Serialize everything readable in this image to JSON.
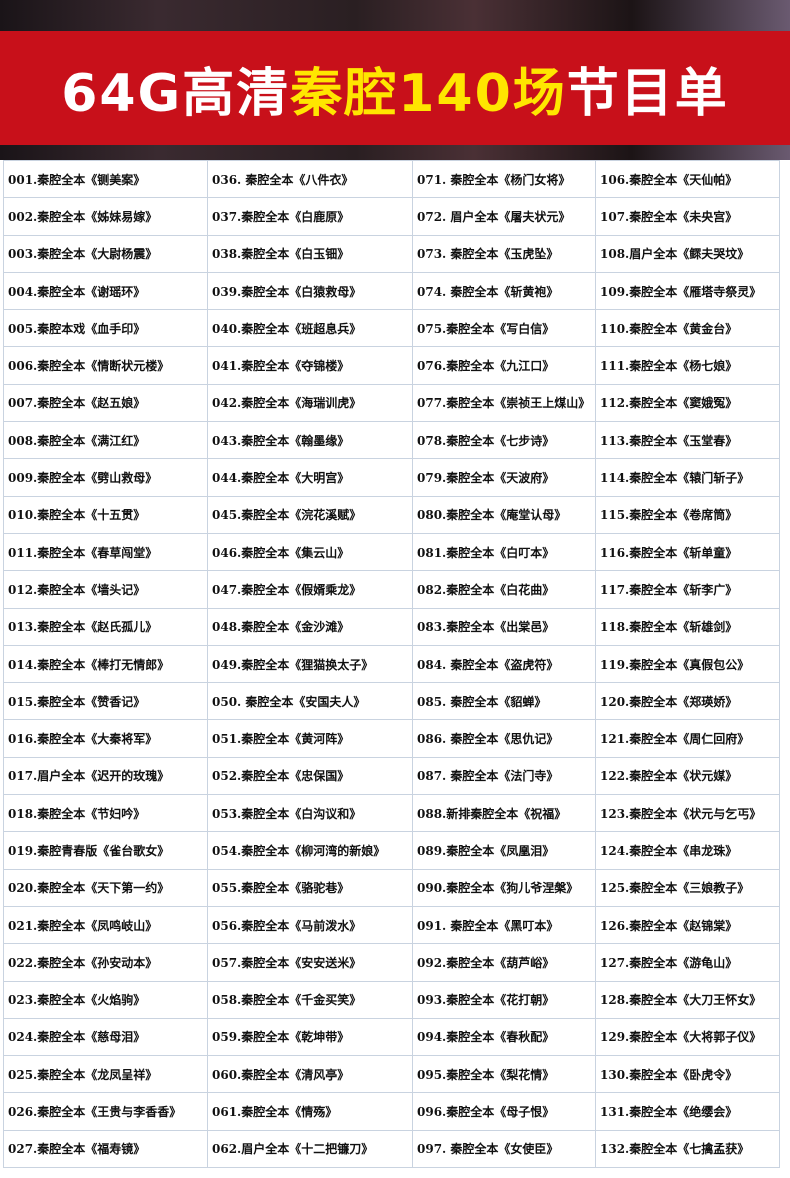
{
  "header": {
    "title_parts": [
      "64G高清",
      "秦腔140场",
      "节目单"
    ]
  },
  "table": {
    "rows": [
      [
        "001.秦腔全本《铡美案》",
        "036. 秦腔全本《八件衣》",
        "071. 秦腔全本《杨门女将》",
        "106.秦腔全本《天仙帕》"
      ],
      [
        "002.秦腔全本《姊妹易嫁》",
        "037.秦腔全本《白鹿原》",
        "072. 眉户全本《屠夫状元》",
        "107.秦腔全本《未央宫》"
      ],
      [
        "003.秦腔全本《大尉杨震》",
        "038.秦腔全本《白玉钿》",
        "073. 秦腔全本《玉虎坠》",
        "108.眉户全本《鳏夫哭坟》"
      ],
      [
        "004.秦腔全本《谢瑶环》",
        "039.秦腔全本《白猿救母》",
        "074. 秦腔全本《斩黄袍》",
        "109.秦腔全本《雁塔寺祭灵》"
      ],
      [
        "005.秦腔本戏《血手印》",
        "040.秦腔全本《班超息兵》",
        "075.秦腔全本《写白信》",
        "110.秦腔全本《黄金台》"
      ],
      [
        "006.秦腔全本《情断状元楼》",
        "041.秦腔全本《夺锦楼》",
        "076.秦腔全本《九江口》",
        "111.秦腔全本《杨七娘》"
      ],
      [
        "007.秦腔全本《赵五娘》",
        "042.秦腔全本《海瑞训虎》",
        "077.秦腔全本《崇祯王上煤山》",
        "112.秦腔全本《窦娥冤》"
      ],
      [
        "008.秦腔全本《满江红》",
        "043.秦腔全本《翰墨缘》",
        "078.秦腔全本《七步诗》",
        "113.秦腔全本《玉堂春》"
      ],
      [
        "009.秦腔全本《劈山救母》",
        "044.秦腔全本《大明宫》",
        "079.秦腔全本《天波府》",
        "114.秦腔全本《辕门斩子》"
      ],
      [
        "010.秦腔全本《十五贯》",
        "045.秦腔全本《浣花溪赋》",
        "080.秦腔全本《庵堂认母》",
        "115.秦腔全本《卷席筒》"
      ],
      [
        "011.秦腔全本《春草闯堂》",
        "046.秦腔全本《集云山》",
        "081.秦腔全本《白叮本》",
        "116.秦腔全本《斩单童》"
      ],
      [
        "012.秦腔全本《墙头记》",
        "047.秦腔全本《假婿乘龙》",
        "082.秦腔全本《白花曲》",
        "117.秦腔全本《斩李广》"
      ],
      [
        "013.秦腔全本《赵氏孤儿》",
        "048.秦腔全本《金沙滩》",
        "083.秦腔全本《出棠邑》",
        "118.秦腔全本《斩雄剑》"
      ],
      [
        "014.秦腔全本《棒打无情郎》",
        "049.秦腔全本《狸猫换太子》",
        "084. 秦腔全本《盗虎符》",
        "119.秦腔全本《真假包公》"
      ],
      [
        "015.秦腔全本《赞香记》",
        "050. 秦腔全本《安国夫人》",
        "085. 秦腔全本《貂蝉》",
        "120.秦腔全本《郑瑛娇》"
      ],
      [
        "016.秦腔全本《大秦将军》",
        "051.秦腔全本《黄河阵》",
        "086. 秦腔全本《思仇记》",
        "121.秦腔全本《周仁回府》"
      ],
      [
        "017.眉户全本《迟开的玫瑰》",
        "052.秦腔全本《忠保国》",
        "087. 秦腔全本《法门寺》",
        "122.秦腔全本《状元媒》"
      ],
      [
        "018.秦腔全本《节妇吟》",
        "053.秦腔全本《白沟议和》",
        "088.新排秦腔全本《祝福》",
        "123.秦腔全本《状元与乞丐》"
      ],
      [
        "019.秦腔青春版《雀台歌女》",
        "054.秦腔全本《柳河湾的新娘》",
        "089.秦腔全本《凤凰泪》",
        "124.秦腔全本《串龙珠》"
      ],
      [
        "020.秦腔全本《天下第一约》",
        "055.秦腔全本《骆驼巷》",
        "090.秦腔全本《狗儿爷涅槃》",
        "125.秦腔全本《三娘教子》"
      ],
      [
        "021.秦腔全本《凤鸣岐山》",
        "056.秦腔全本《马前泼水》",
        "091. 秦腔全本《黑叮本》",
        "126.秦腔全本《赵锦棠》"
      ],
      [
        "022.秦腔全本《孙安动本》",
        "057.秦腔全本《安安送米》",
        "092.秦腔全本《葫芦峪》",
        "127.秦腔全本《游龟山》"
      ],
      [
        "023.秦腔全本《火焰驹》",
        "058.秦腔全本《千金买笑》",
        "093.秦腔全本《花打朝》",
        "128.秦腔全本《大刀王怀女》"
      ],
      [
        "024.秦腔全本《慈母泪》",
        "059.秦腔全本《乾坤带》",
        "094.秦腔全本《春秋配》",
        "129.秦腔全本《大将郭子仪》"
      ],
      [
        "025.秦腔全本《龙凤呈祥》",
        "060.秦腔全本《清风亭》",
        "095.秦腔全本《梨花情》",
        "130.秦腔全本《卧虎令》"
      ],
      [
        "026.秦腔全本《王贵与李香香》",
        "061.秦腔全本《情殇》",
        "096.秦腔全本《母子恨》",
        "131.秦腔全本《绝缨会》"
      ],
      [
        "027.秦腔全本《福寿镜》",
        "062.眉户全本《十二把镰刀》",
        "097. 秦腔全本《女使臣》",
        "132.秦腔全本《七擒孟获》"
      ]
    ]
  }
}
